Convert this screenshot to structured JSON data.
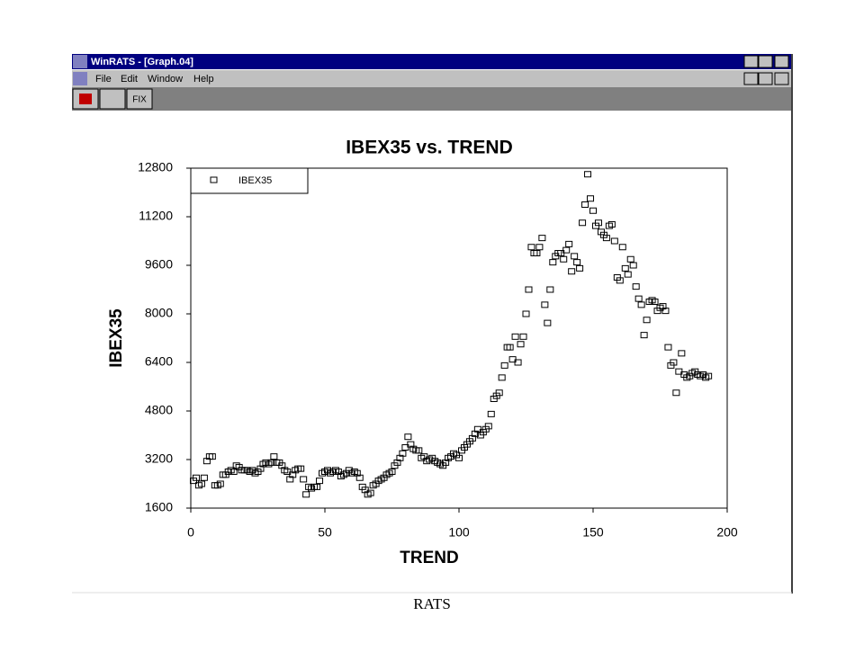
{
  "window": {
    "title": "WinRATS - [Graph.04]",
    "menu": [
      "File",
      "Edit",
      "Window",
      "Help"
    ],
    "toolbar": [
      "FIX"
    ]
  },
  "caption": "RATS",
  "chart_data": {
    "type": "scatter",
    "title": "IBEX35 vs. TREND",
    "x_label": "TREND",
    "y_label": "IBEX35",
    "legend": "top-left",
    "xlim": [
      0,
      200
    ],
    "xticks": [
      0,
      50,
      100,
      150,
      200
    ],
    "ylim": [
      1600,
      12800
    ],
    "yticks": [
      1600,
      3200,
      4800,
      6400,
      8000,
      9600,
      11200,
      12800
    ],
    "series": [
      {
        "name": "IBEX35",
        "color": "#000000",
        "x": [
          1,
          2,
          3,
          4,
          5,
          6,
          7,
          8,
          9,
          10,
          11,
          12,
          13,
          14,
          15,
          16,
          17,
          18,
          19,
          20,
          21,
          22,
          23,
          24,
          25,
          26,
          27,
          28,
          29,
          30,
          31,
          32,
          33,
          34,
          35,
          36,
          37,
          38,
          39,
          40,
          41,
          42,
          43,
          44,
          45,
          46,
          47,
          48,
          49,
          50,
          51,
          52,
          53,
          54,
          55,
          56,
          57,
          58,
          59,
          60,
          61,
          62,
          63,
          64,
          65,
          66,
          67,
          68,
          69,
          70,
          71,
          72,
          73,
          74,
          75,
          76,
          77,
          78,
          79,
          80,
          81,
          82,
          83,
          84,
          85,
          86,
          87,
          88,
          89,
          90,
          91,
          92,
          93,
          94,
          95,
          96,
          97,
          98,
          99,
          100,
          101,
          102,
          103,
          104,
          105,
          106,
          107,
          108,
          109,
          110,
          111,
          112,
          113,
          114,
          115,
          116,
          117,
          118,
          119,
          120,
          121,
          122,
          123,
          124,
          125,
          126,
          127,
          128,
          129,
          130,
          131,
          132,
          133,
          134,
          135,
          136,
          137,
          138,
          139,
          140,
          141,
          142,
          143,
          144,
          145,
          146,
          147,
          148,
          149,
          150,
          151,
          152,
          153,
          154,
          155,
          156,
          157,
          158,
          159,
          160,
          161,
          162,
          163,
          164,
          165,
          166,
          167,
          168,
          169,
          170,
          171,
          172,
          173,
          174,
          175,
          176,
          177,
          178,
          179,
          180,
          181,
          182,
          183,
          184,
          185,
          186,
          187,
          188,
          189,
          190,
          191,
          192,
          193
        ],
        "values": [
          2500,
          2600,
          2350,
          2400,
          2600,
          3150,
          3300,
          3300,
          2350,
          2350,
          2400,
          2700,
          2700,
          2800,
          2850,
          2800,
          3000,
          2950,
          2850,
          2850,
          2850,
          2800,
          2850,
          2750,
          2800,
          2900,
          3050,
          3100,
          3050,
          3100,
          3300,
          3100,
          3100,
          3000,
          2850,
          2800,
          2550,
          2700,
          2850,
          2900,
          2900,
          2550,
          2050,
          2300,
          2250,
          2300,
          2300,
          2500,
          2750,
          2800,
          2850,
          2750,
          2800,
          2850,
          2800,
          2650,
          2700,
          2750,
          2850,
          2750,
          2800,
          2750,
          2600,
          2300,
          2200,
          2050,
          2100,
          2350,
          2400,
          2500,
          2550,
          2600,
          2700,
          2750,
          2800,
          3000,
          3100,
          3250,
          3400,
          3600,
          3950,
          3700,
          3550,
          3500,
          3500,
          3250,
          3300,
          3150,
          3200,
          3250,
          3150,
          3100,
          3050,
          3000,
          3100,
          3250,
          3300,
          3400,
          3350,
          3250,
          3500,
          3600,
          3700,
          3800,
          3900,
          4050,
          4200,
          4000,
          4100,
          4200,
          4300,
          4700,
          5200,
          5300,
          5400,
          5900,
          6300,
          6900,
          6900,
          6500,
          7250,
          6400,
          7000,
          7250,
          8000,
          8800,
          10200,
          10000,
          10000,
          10200,
          10500,
          8300,
          7700,
          8800,
          9700,
          9900,
          10000,
          10000,
          9800,
          10100,
          10300,
          9400,
          9900,
          9700,
          9500,
          11000,
          11600,
          12600,
          11800,
          11400,
          10900,
          11000,
          10700,
          10600,
          10500,
          10900,
          10950,
          10400,
          9200,
          9100,
          10200,
          9500,
          9300,
          9800,
          9600,
          8900,
          8500,
          8300,
          7300,
          7800,
          8400,
          8450,
          8400,
          8100,
          8200,
          8250,
          8100,
          6900,
          6300,
          6400,
          5400,
          6100,
          6700,
          6000,
          5900,
          5950,
          6050,
          6100,
          6000,
          5950,
          6000,
          5900,
          5950
        ]
      }
    ]
  }
}
